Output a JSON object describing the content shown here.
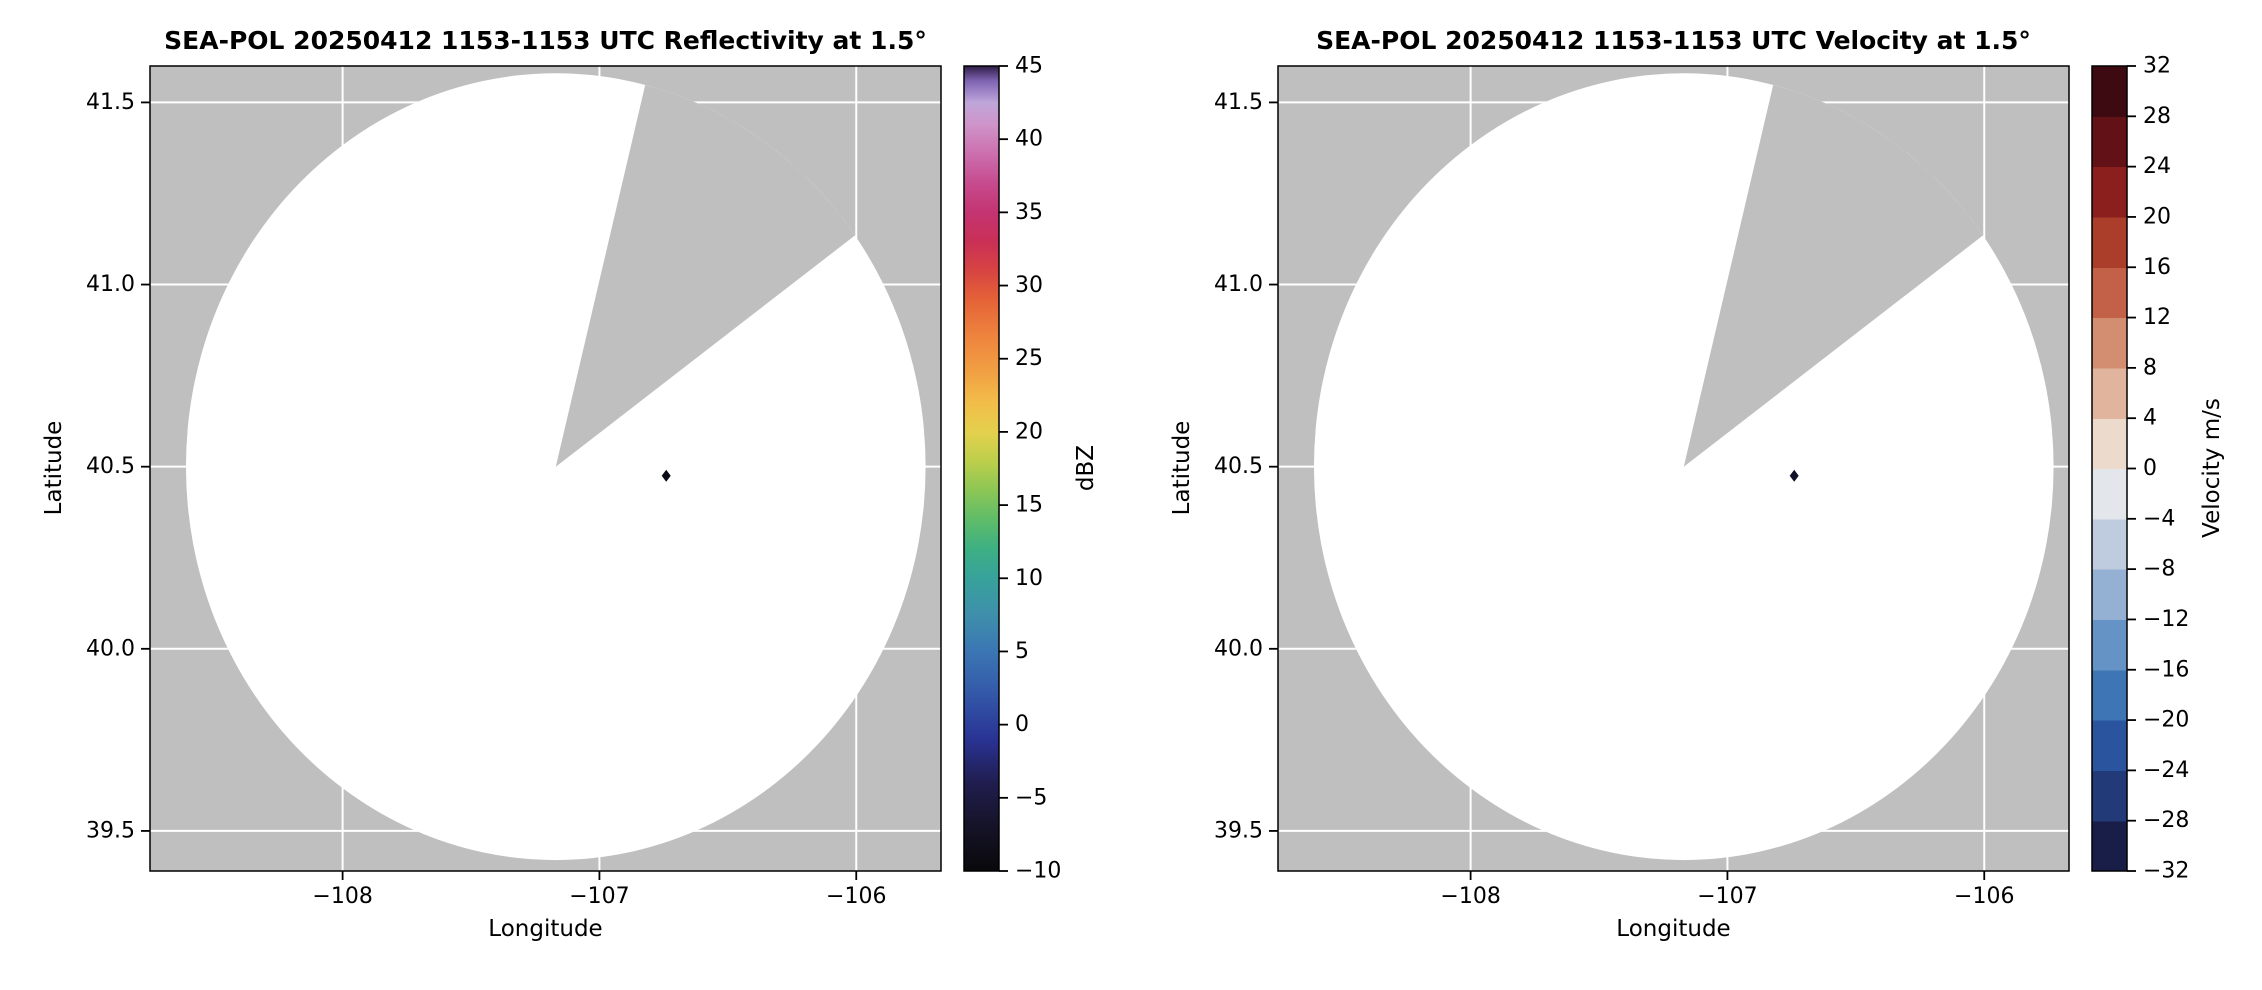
{
  "figure": {
    "background": "#ffffff"
  },
  "chart_data": [
    {
      "type": "radar_ppi",
      "title": "SEA-POL 20250412 1153-1153 UTC Reflectivity at 1.5°",
      "xlabel": "Longitude",
      "ylabel": "Latitude",
      "xlim": [
        -108.75,
        -105.67
      ],
      "ylim": [
        39.39,
        41.6
      ],
      "xticks": [
        -108,
        -107,
        -106
      ],
      "xtick_labels": [
        "−108",
        "−107",
        "−106"
      ],
      "yticks": [
        41.5,
        41.0,
        40.5,
        40.0,
        39.5
      ],
      "ytick_labels": [
        "41.5",
        "41.0",
        "40.5",
        "40.0",
        "39.5"
      ],
      "grid": true,
      "colors": {
        "masked": "#bfbfbf",
        "grid": "#ffffff",
        "scan_fill": "#ffffff",
        "spine": "#000000"
      },
      "radar": {
        "center_lon": -107.17,
        "center_lat": 40.5,
        "radius_deg_lon": 1.44,
        "radius_deg_lat": 1.08,
        "blocked_sector_azimuth_deg": [
          14,
          55
        ]
      },
      "marker": {
        "lon": -106.74,
        "lat": 40.475,
        "shape": "diamond",
        "color": "#0c0c16"
      },
      "colorbar": {
        "label": "dBZ",
        "min": -10,
        "max": 45,
        "style": "continuous",
        "ticks": [
          45,
          40,
          35,
          30,
          25,
          20,
          15,
          10,
          5,
          0,
          -5,
          -10
        ],
        "tick_labels": [
          "45",
          "40",
          "35",
          "30",
          "25",
          "20",
          "15",
          "10",
          "5",
          "0",
          "−5",
          "−10"
        ],
        "stops": [
          [
            -10,
            "#09090b"
          ],
          [
            -7,
            "#151327"
          ],
          [
            -4,
            "#201d4e"
          ],
          [
            -1,
            "#293394"
          ],
          [
            2,
            "#3357a8"
          ],
          [
            5,
            "#3b76b4"
          ],
          [
            7.5,
            "#3f8fab"
          ],
          [
            10,
            "#37a29b"
          ],
          [
            12,
            "#3db083"
          ],
          [
            14,
            "#5fbc69"
          ],
          [
            16,
            "#8cc655"
          ],
          [
            18,
            "#bccf4b"
          ],
          [
            20,
            "#e4d04d"
          ],
          [
            22,
            "#f2bd49"
          ],
          [
            24,
            "#f1a143"
          ],
          [
            26.5,
            "#ee843e"
          ],
          [
            29,
            "#e56338"
          ],
          [
            31,
            "#d74442"
          ],
          [
            33,
            "#c93056"
          ],
          [
            35,
            "#c43472"
          ],
          [
            37,
            "#c64b8e"
          ],
          [
            39,
            "#cc6fae"
          ],
          [
            41,
            "#cf94c9"
          ],
          [
            42.5,
            "#bfa6da"
          ],
          [
            44,
            "#7e63b2"
          ],
          [
            45,
            "#2e1d46"
          ]
        ]
      }
    },
    {
      "type": "radar_ppi",
      "title": "SEA-POL 20250412 1153-1153 UTC Velocity at 1.5°",
      "xlabel": "Longitude",
      "ylabel": "Latitude",
      "xlim": [
        -108.75,
        -105.67
      ],
      "ylim": [
        39.39,
        41.6
      ],
      "xticks": [
        -108,
        -107,
        -106
      ],
      "xtick_labels": [
        "−108",
        "−107",
        "−106"
      ],
      "yticks": [
        41.5,
        41.0,
        40.5,
        40.0,
        39.5
      ],
      "ytick_labels": [
        "41.5",
        "41.0",
        "40.5",
        "40.0",
        "39.5"
      ],
      "grid": true,
      "colors": {
        "masked": "#bfbfbf",
        "grid": "#ffffff",
        "scan_fill": "#ffffff",
        "spine": "#000000"
      },
      "radar": {
        "center_lon": -107.17,
        "center_lat": 40.5,
        "radius_deg_lon": 1.44,
        "radius_deg_lat": 1.08,
        "blocked_sector_azimuth_deg": [
          14,
          55
        ]
      },
      "marker": {
        "lon": -106.74,
        "lat": 40.475,
        "shape": "diamond",
        "color": "#10122b"
      },
      "colorbar": {
        "label": "Velocity m/s",
        "min": -32,
        "max": 32,
        "style": "discrete",
        "ticks": [
          32,
          28,
          24,
          20,
          16,
          12,
          8,
          4,
          0,
          -4,
          -8,
          -12,
          -16,
          -20,
          -24,
          -28,
          -32
        ],
        "tick_labels": [
          "32",
          "28",
          "24",
          "20",
          "16",
          "12",
          "8",
          "4",
          "0",
          "−4",
          "−8",
          "−12",
          "−16",
          "−20",
          "−24",
          "−28",
          "−32"
        ],
        "segments": [
          [
            -32,
            -28,
            "#181e48"
          ],
          [
            -28,
            -24,
            "#223a78"
          ],
          [
            -24,
            -20,
            "#2a549d"
          ],
          [
            -20,
            -16,
            "#3e75b5"
          ],
          [
            -16,
            -12,
            "#6693c6"
          ],
          [
            -12,
            -8,
            "#94b0d2"
          ],
          [
            -8,
            -4,
            "#bfccdf"
          ],
          [
            -4,
            0,
            "#e3e6ea"
          ],
          [
            0,
            4,
            "#ecdacd"
          ],
          [
            4,
            8,
            "#e0b49d"
          ],
          [
            8,
            12,
            "#d38d70"
          ],
          [
            12,
            16,
            "#c26147"
          ],
          [
            16,
            20,
            "#ab3d2b"
          ],
          [
            20,
            24,
            "#8a1f1e"
          ],
          [
            24,
            28,
            "#621216"
          ],
          [
            28,
            32,
            "#3d0a12"
          ]
        ]
      }
    }
  ]
}
